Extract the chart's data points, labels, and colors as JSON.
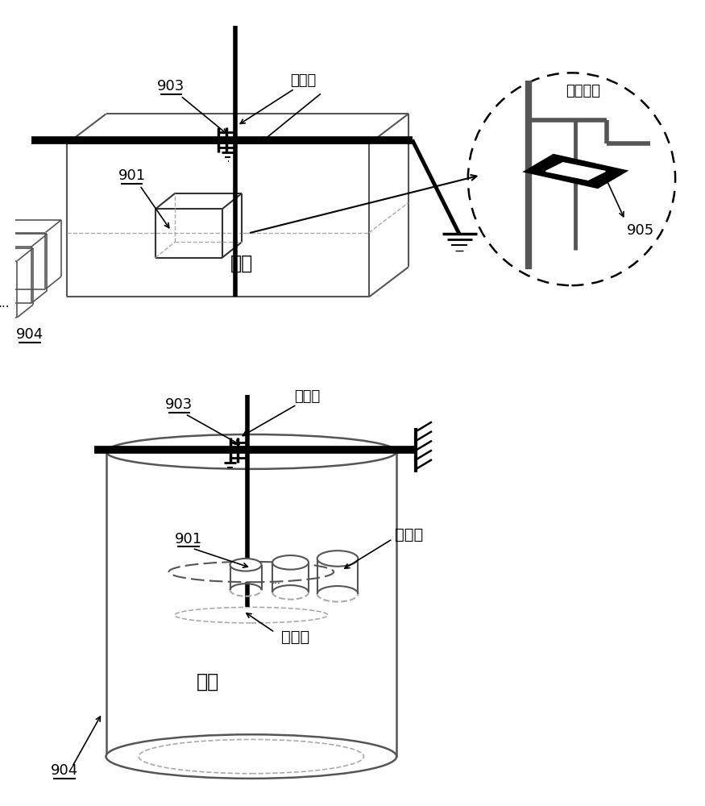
{
  "bg_color": "#ffffff",
  "line_color": "#000000",
  "dark_gray": "#333333",
  "gray_color": "#555555",
  "light_gray": "#aaaaaa",
  "label_903": "903",
  "label_901": "901",
  "label_904": "904",
  "label_905": "905",
  "label_ping_yi_zhou": "平移轴",
  "label_ye_dan": "液氮",
  "label_zi_rong_qi": "子容器",
  "label_xuan_zhuan": "旋转轴",
  "label_zi_rong_qi_bing": "子容器柄"
}
